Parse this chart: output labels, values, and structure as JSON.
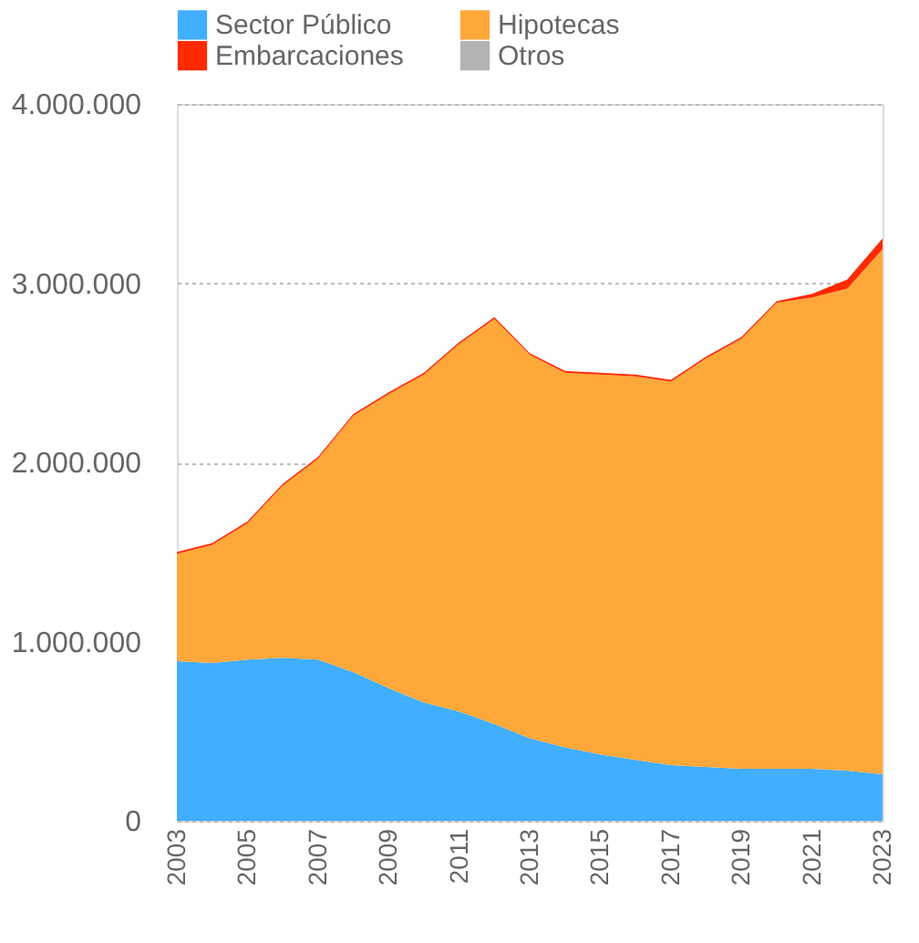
{
  "chart_data": {
    "type": "area",
    "stacked": true,
    "x": [
      2003,
      2004,
      2005,
      2006,
      2007,
      2008,
      2009,
      2010,
      2011,
      2012,
      2013,
      2014,
      2015,
      2016,
      2017,
      2018,
      2019,
      2020,
      2021,
      2022,
      2023
    ],
    "series": [
      {
        "name": "Sector Público",
        "color": "#42aeff",
        "values": [
          890000,
          880000,
          900000,
          910000,
          900000,
          830000,
          740000,
          660000,
          610000,
          540000,
          460000,
          410000,
          370000,
          340000,
          310000,
          300000,
          290000,
          290000,
          290000,
          280000,
          260000
        ]
      },
      {
        "name": "Hipotecas",
        "color": "#ffa83a",
        "values": [
          600000,
          660000,
          760000,
          960000,
          1120000,
          1430000,
          1640000,
          1830000,
          2050000,
          2260000,
          2140000,
          2090000,
          2120000,
          2140000,
          2140000,
          2280000,
          2400000,
          2600000,
          2630000,
          2690000,
          2930000
        ]
      },
      {
        "name": "Embarcaciones",
        "color": "#ff2a00",
        "values": [
          10000,
          10000,
          10000,
          10000,
          10000,
          10000,
          10000,
          10000,
          10000,
          10000,
          10000,
          10000,
          10000,
          10000,
          10000,
          10000,
          10000,
          10000,
          20000,
          50000,
          60000
        ]
      },
      {
        "name": "Otros",
        "color": "#b3b3b3",
        "values": [
          null,
          null,
          null,
          null,
          null,
          null,
          null,
          null,
          null,
          null,
          null,
          null,
          null,
          null,
          null,
          null,
          null,
          null,
          null,
          null,
          null
        ]
      }
    ],
    "xlim": [
      2003,
      2023
    ],
    "xticks": [
      2003,
      2005,
      2007,
      2009,
      2011,
      2013,
      2015,
      2017,
      2019,
      2021,
      2023
    ],
    "ylim": [
      0,
      4000000
    ],
    "yticks": [
      {
        "value": 0,
        "label": "0"
      },
      {
        "value": 1000000,
        "label": "1.000.000"
      },
      {
        "value": 2000000,
        "label": "2.000.000"
      },
      {
        "value": 3000000,
        "label": "3.000.000"
      },
      {
        "value": 4000000,
        "label": "4.000.000"
      }
    ],
    "grid": "y",
    "legend": "top"
  }
}
